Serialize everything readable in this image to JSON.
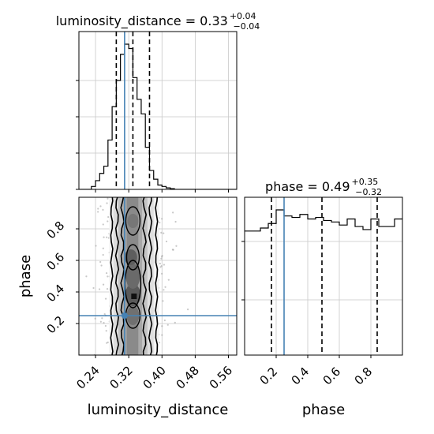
{
  "chart_data": [
    {
      "type": "histogram",
      "panel": "top-left",
      "title_main": "luminosity_distance = 0.33",
      "title_sup": "+0.04",
      "title_sub": "−0.04",
      "xlim": [
        0.2,
        0.58
      ],
      "bin_edges": [
        0.2,
        0.21,
        0.22,
        0.23,
        0.24,
        0.25,
        0.26,
        0.27,
        0.28,
        0.29,
        0.3,
        0.31,
        0.32,
        0.33,
        0.34,
        0.35,
        0.36,
        0.37,
        0.38,
        0.39,
        0.4,
        0.41,
        0.42,
        0.43,
        0.44,
        0.45,
        0.46,
        0.47,
        0.48,
        0.49,
        0.5,
        0.51,
        0.52,
        0.53,
        0.54,
        0.55,
        0.56,
        0.57,
        0.58
      ],
      "counts": [
        0,
        0,
        0,
        0.02,
        0.06,
        0.11,
        0.16,
        0.34,
        0.57,
        0.75,
        0.93,
        1.0,
        0.97,
        0.77,
        0.62,
        0.52,
        0.29,
        0.13,
        0.07,
        0.03,
        0.02,
        0.01,
        0.005,
        0,
        0,
        0,
        0,
        0,
        0,
        0,
        0,
        0,
        0,
        0,
        0,
        0,
        0,
        0
      ],
      "quantiles": [
        0.29,
        0.33,
        0.37
      ],
      "truth": 0.31,
      "grid": true
    },
    {
      "type": "histogram",
      "panel": "bottom-right",
      "title_main": "phase = 0.49",
      "title_sup": "+0.35",
      "title_sub": "−0.32",
      "xlim": [
        0.0,
        1.0
      ],
      "xticks": [
        "0.2",
        "0.4",
        "0.6",
        "0.8"
      ],
      "xlabel": "phase",
      "bin_edges": [
        0.0,
        0.05,
        0.1,
        0.15,
        0.2,
        0.25,
        0.3,
        0.35,
        0.4,
        0.45,
        0.5,
        0.55,
        0.6,
        0.65,
        0.7,
        0.75,
        0.8,
        0.85,
        0.9,
        0.95,
        1.0
      ],
      "counts": [
        0.82,
        0.82,
        0.84,
        0.87,
        0.96,
        0.92,
        0.91,
        0.93,
        0.9,
        0.91,
        0.89,
        0.88,
        0.86,
        0.9,
        0.85,
        0.83,
        0.9,
        0.85,
        0.85,
        0.9
      ],
      "quantiles": [
        0.17,
        0.49,
        0.84
      ],
      "truth": 0.25,
      "grid": true
    },
    {
      "type": "scatter",
      "panel": "bottom-left",
      "description": "2D posterior density with contours",
      "xlim": [
        0.2,
        0.58
      ],
      "ylim": [
        0.0,
        1.0
      ],
      "xticks": [
        "0.24",
        "0.32",
        "0.40",
        "0.48",
        "0.56"
      ],
      "yticks": [
        "0.2",
        "0.4",
        "0.6",
        "0.8"
      ],
      "xlabel": "luminosity_distance",
      "ylabel": "phase",
      "truth": [
        0.31,
        0.25
      ],
      "grid": true
    }
  ]
}
